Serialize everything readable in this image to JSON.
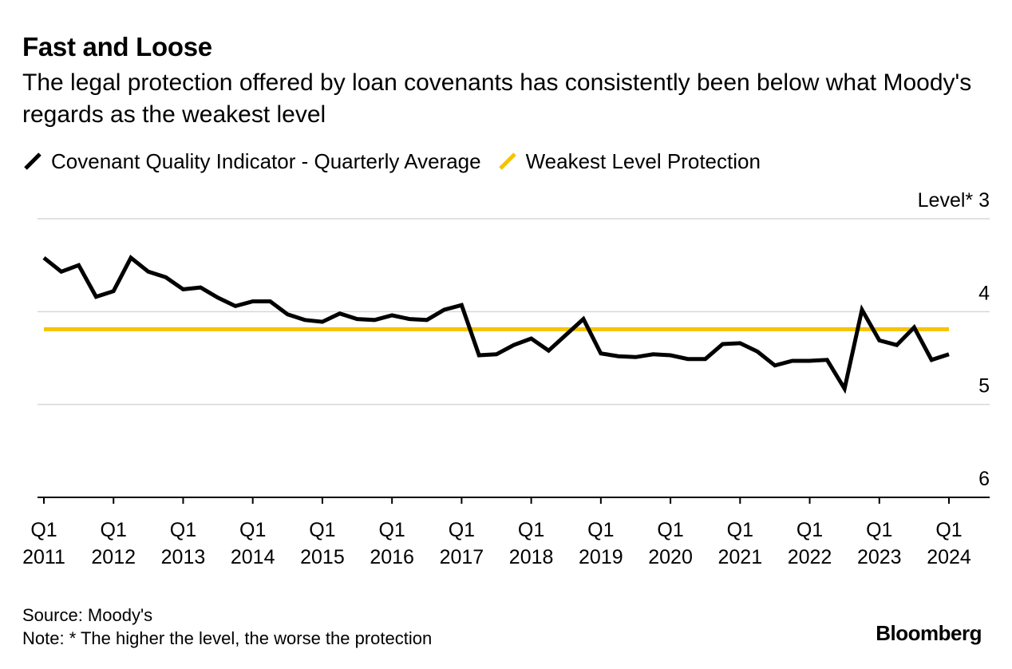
{
  "title": "Fast and Loose",
  "subtitle": "The legal protection offered by loan covenants has consistently been below what Moody's regards as the weakest level",
  "legend": [
    {
      "label": "Covenant Quality Indicator - Quarterly Average",
      "color": "#000000"
    },
    {
      "label": "Weakest Level Protection",
      "color": "#f5c300"
    }
  ],
  "footer": {
    "source": "Source: Moody's",
    "note": "Note: * The higher the level, the worse the protection"
  },
  "brand": "Bloomberg",
  "chart_data": {
    "type": "line",
    "title": "Fast and Loose",
    "ylabel": "Level*",
    "ylim": [
      3,
      6
    ],
    "y_inverted": true,
    "y_ticks": [
      3,
      4,
      5,
      6
    ],
    "y_tick_labels": [
      "Level* 3",
      "4",
      "5",
      "6"
    ],
    "x_start": 2011,
    "x_end": 2024,
    "x_tick_labels": [
      {
        "year": 2011,
        "line1": "Q1",
        "line2": "2011"
      },
      {
        "year": 2012,
        "line1": "Q1",
        "line2": "2012"
      },
      {
        "year": 2013,
        "line1": "Q1",
        "line2": "2013"
      },
      {
        "year": 2014,
        "line1": "Q1",
        "line2": "2014"
      },
      {
        "year": 2015,
        "line1": "Q1",
        "line2": "2015"
      },
      {
        "year": 2016,
        "line1": "Q1",
        "line2": "2016"
      },
      {
        "year": 2017,
        "line1": "Q1",
        "line2": "2017"
      },
      {
        "year": 2018,
        "line1": "Q1",
        "line2": "2018"
      },
      {
        "year": 2019,
        "line1": "Q1",
        "line2": "2019"
      },
      {
        "year": 2020,
        "line1": "Q1",
        "line2": "2020"
      },
      {
        "year": 2021,
        "line1": "Q1",
        "line2": "2021"
      },
      {
        "year": 2022,
        "line1": "Q1",
        "line2": "2022"
      },
      {
        "year": 2023,
        "line1": "Q1",
        "line2": "2023"
      },
      {
        "year": 2024,
        "line1": "Q1",
        "line2": "2024"
      }
    ],
    "series": [
      {
        "name": "Covenant Quality Indicator - Quarterly Average",
        "color": "#000000",
        "start": "Q1 2011",
        "values": [
          3.42,
          3.57,
          3.5,
          3.84,
          3.78,
          3.42,
          3.57,
          3.63,
          3.76,
          3.74,
          3.85,
          3.94,
          3.89,
          3.89,
          4.03,
          4.09,
          4.11,
          4.02,
          4.08,
          4.09,
          4.04,
          4.08,
          4.09,
          3.98,
          3.93,
          4.47,
          4.46,
          4.36,
          4.29,
          4.42,
          4.25,
          4.08,
          4.45,
          4.48,
          4.49,
          4.46,
          4.47,
          4.51,
          4.51,
          4.35,
          4.34,
          4.43,
          4.58,
          4.53,
          4.53,
          4.52,
          4.83,
          3.98,
          4.31,
          4.36,
          4.17,
          4.52,
          4.46
        ]
      },
      {
        "name": "Weakest Level Protection",
        "color": "#f5c300",
        "values": [
          4.19
        ]
      }
    ]
  }
}
